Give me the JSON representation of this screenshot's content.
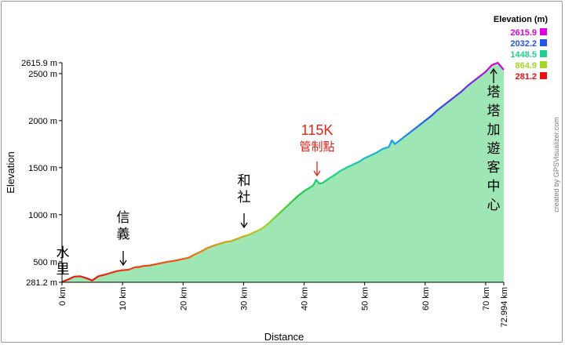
{
  "chart_data": {
    "type": "area",
    "title": "",
    "xlabel": "Distance",
    "ylabel": "Elevation",
    "xlim": [
      0,
      72.994
    ],
    "ylim": [
      281.2,
      2615.9
    ],
    "x_unit": "km",
    "y_unit": "m",
    "grid": false,
    "fill_color": "#9ee6b4",
    "y_ticks": [
      {
        "value": 281.2,
        "label": "281.2 m"
      },
      {
        "value": 500,
        "label": "500 m"
      },
      {
        "value": 1000,
        "label": "1000 m"
      },
      {
        "value": 1500,
        "label": "1500 m"
      },
      {
        "value": 2000,
        "label": "2000 m"
      },
      {
        "value": 2500,
        "label": "2500 m"
      },
      {
        "value": 2615.9,
        "label": "2615.9 m"
      }
    ],
    "x_ticks": [
      {
        "value": 0,
        "label": "0 km"
      },
      {
        "value": 10,
        "label": "10 km"
      },
      {
        "value": 20,
        "label": "20 km"
      },
      {
        "value": 30,
        "label": "30 km"
      },
      {
        "value": 40,
        "label": "40 km"
      },
      {
        "value": 50,
        "label": "50 km"
      },
      {
        "value": 60,
        "label": "60 km"
      },
      {
        "value": 70,
        "label": "70 km"
      },
      {
        "value": 72.994,
        "label": "72.994 km"
      }
    ],
    "series": [
      {
        "x": [
          0,
          1,
          2,
          3,
          4,
          5,
          6,
          7,
          8,
          9,
          10,
          11,
          12,
          12.8,
          13.5,
          14.5,
          16,
          17.5,
          19,
          20,
          21,
          22,
          23,
          24,
          25,
          26,
          27,
          28,
          29,
          30,
          31,
          32,
          33,
          34,
          35,
          36,
          37,
          38,
          39,
          40,
          41,
          41.5,
          42,
          42.5,
          43,
          44,
          45,
          46,
          47,
          48,
          49,
          50,
          51,
          52,
          53,
          54,
          54.5,
          55,
          56,
          57,
          58,
          59,
          60,
          61,
          62,
          63,
          64,
          65,
          66,
          67,
          68,
          69,
          70,
          71,
          72,
          72.994
        ],
        "y": [
          285,
          310,
          340,
          345,
          325,
          300,
          345,
          360,
          380,
          400,
          410,
          415,
          440,
          445,
          455,
          460,
          480,
          500,
          515,
          530,
          545,
          580,
          610,
          645,
          670,
          690,
          710,
          720,
          745,
          770,
          790,
          820,
          850,
          900,
          960,
          1020,
          1080,
          1140,
          1200,
          1250,
          1290,
          1310,
          1370,
          1330,
          1335,
          1380,
          1420,
          1465,
          1500,
          1530,
          1560,
          1600,
          1630,
          1660,
          1700,
          1720,
          1790,
          1750,
          1800,
          1850,
          1900,
          1950,
          2000,
          2050,
          2110,
          2160,
          2210,
          2260,
          2310,
          2370,
          2420,
          2470,
          2520,
          2590,
          2615.9,
          2540
        ]
      }
    ],
    "color_legend": {
      "title": "Elevation (m)",
      "entries": [
        {
          "label": "2615.9",
          "color": "#e000e0"
        },
        {
          "label": "2032.2",
          "color": "#2255e8"
        },
        {
          "label": "1448.5",
          "color": "#1fd190"
        },
        {
          "label": "864.9",
          "color": "#a6d422"
        },
        {
          "label": "281.2",
          "color": "#e81010"
        }
      ]
    },
    "annotations": [
      {
        "lines": [
          "水",
          "里"
        ],
        "x": 0,
        "arrow": false,
        "color": "black"
      },
      {
        "lines": [
          "信",
          "義"
        ],
        "x": 10,
        "arrow": "down",
        "color": "black"
      },
      {
        "lines": [
          "和",
          "社"
        ],
        "x": 30,
        "arrow": "down",
        "color": "black"
      },
      {
        "lines": [
          "115K",
          "管制點"
        ],
        "x": 42,
        "arrow": "down",
        "color": "red"
      },
      {
        "lines": [
          "塔",
          "塔",
          "加",
          "遊",
          "客",
          "中",
          "心"
        ],
        "x": 71,
        "arrow": "up",
        "color": "black"
      }
    ],
    "credit": "created by GPSVisualizer.com"
  }
}
